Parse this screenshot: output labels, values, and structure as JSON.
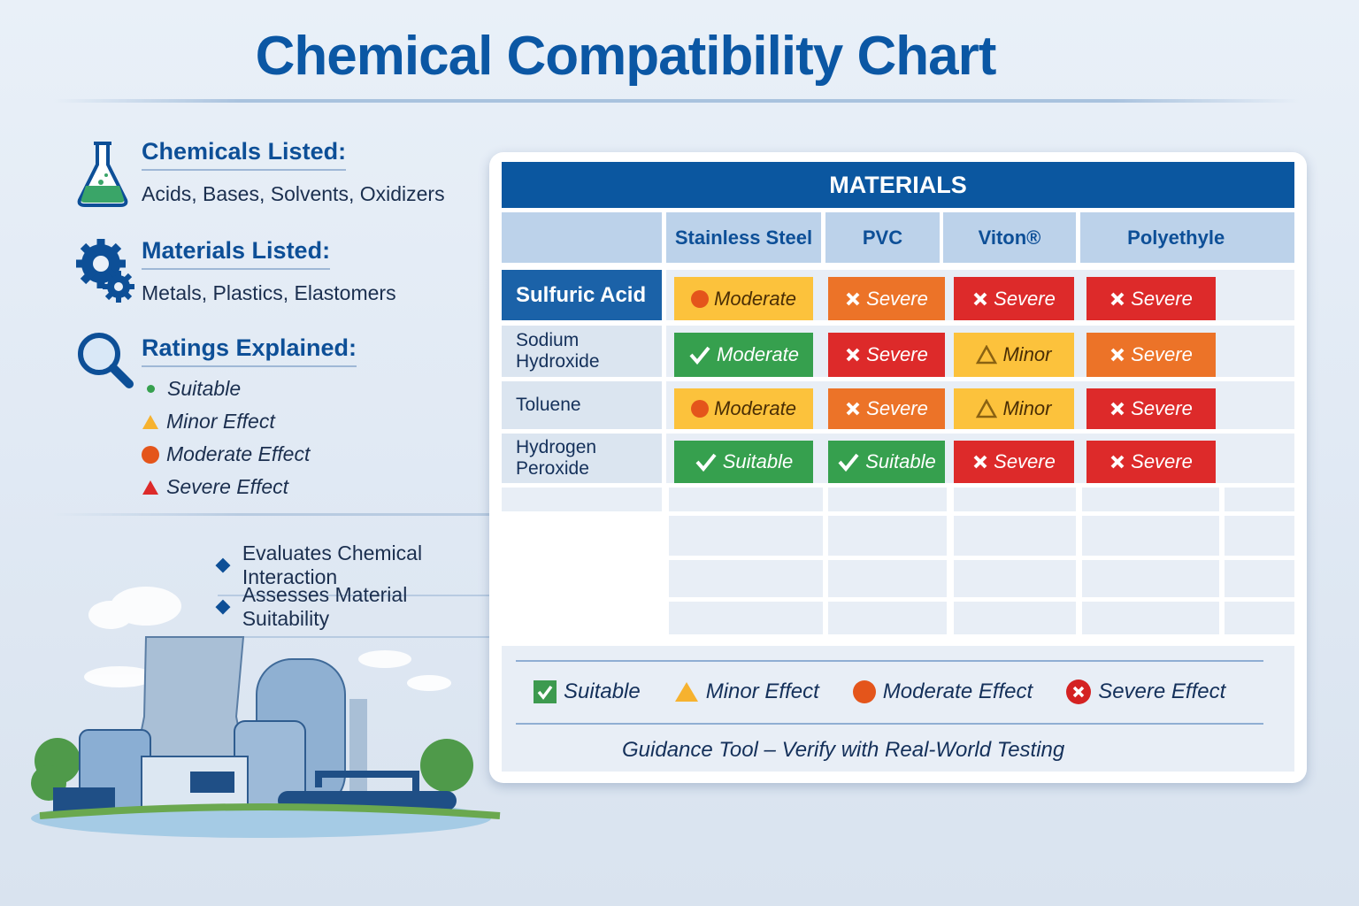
{
  "title": "Chemical Compatibility Chart",
  "info": {
    "chemicals": {
      "heading": "Chemicals Listed:",
      "text": "Acids, Bases, Solvents, Oxidizers",
      "icon": "flask-icon"
    },
    "materials": {
      "heading": "Materials Listed:",
      "text": "Metals, Plastics, Elastomers",
      "icon": "gears-icon"
    },
    "ratings": {
      "heading": "Ratings Explained:",
      "icon": "magnifier-icon",
      "items": [
        "Suitable",
        "Minor Effect",
        "Moderate Effect",
        "Severe Effect"
      ]
    }
  },
  "bullets": [
    "Evaluates Chemical Interaction",
    "Assesses Material Suitability"
  ],
  "table": {
    "header": "MATERIALS",
    "columns": [
      "Stainless Steel",
      "PVC",
      "Viton®",
      "Polyethylene"
    ],
    "rows": [
      {
        "chemical": "Sulfuric Acid",
        "cells": [
          {
            "label": "Moderate",
            "icon": "circle",
            "color": "yellow"
          },
          {
            "label": "Severe",
            "icon": "x",
            "color": "orange"
          },
          {
            "label": "Severe",
            "icon": "x",
            "color": "red"
          },
          {
            "label": "Severe",
            "icon": "x",
            "color": "red"
          }
        ]
      },
      {
        "chemical": "Sodium Hydroxide",
        "cells": [
          {
            "label": "Moderate",
            "icon": "check",
            "color": "green"
          },
          {
            "label": "Severe",
            "icon": "x",
            "color": "red"
          },
          {
            "label": "Minor",
            "icon": "triangle",
            "color": "yellow"
          },
          {
            "label": "Severe",
            "icon": "x",
            "color": "orange"
          }
        ]
      },
      {
        "chemical": "Toluene",
        "cells": [
          {
            "label": "Moderate",
            "icon": "circle",
            "color": "yellow"
          },
          {
            "label": "Severe",
            "icon": "x",
            "color": "orange"
          },
          {
            "label": "Minor",
            "icon": "triangle",
            "color": "yellow"
          },
          {
            "label": "Severe",
            "icon": "x",
            "color": "red"
          }
        ]
      },
      {
        "chemical": "Hydrogen Peroxide",
        "cells": [
          {
            "label": "Suitable",
            "icon": "check",
            "color": "green"
          },
          {
            "label": "Suitable",
            "icon": "check",
            "color": "green"
          },
          {
            "label": "Severe",
            "icon": "x",
            "color": "red"
          },
          {
            "label": "Severe",
            "icon": "x",
            "color": "red"
          }
        ]
      }
    ]
  },
  "legend": [
    "Suitable",
    "Minor Effect",
    "Moderate Effect",
    "Severe Effect"
  ],
  "footer": "Guidance Tool – Verify with Real-World Testing",
  "colors": {
    "brand": "#0b57a4",
    "green": "#36a04e",
    "yellow": "#fcc23c",
    "orange": "#ec7328",
    "red": "#dd2a2a"
  }
}
